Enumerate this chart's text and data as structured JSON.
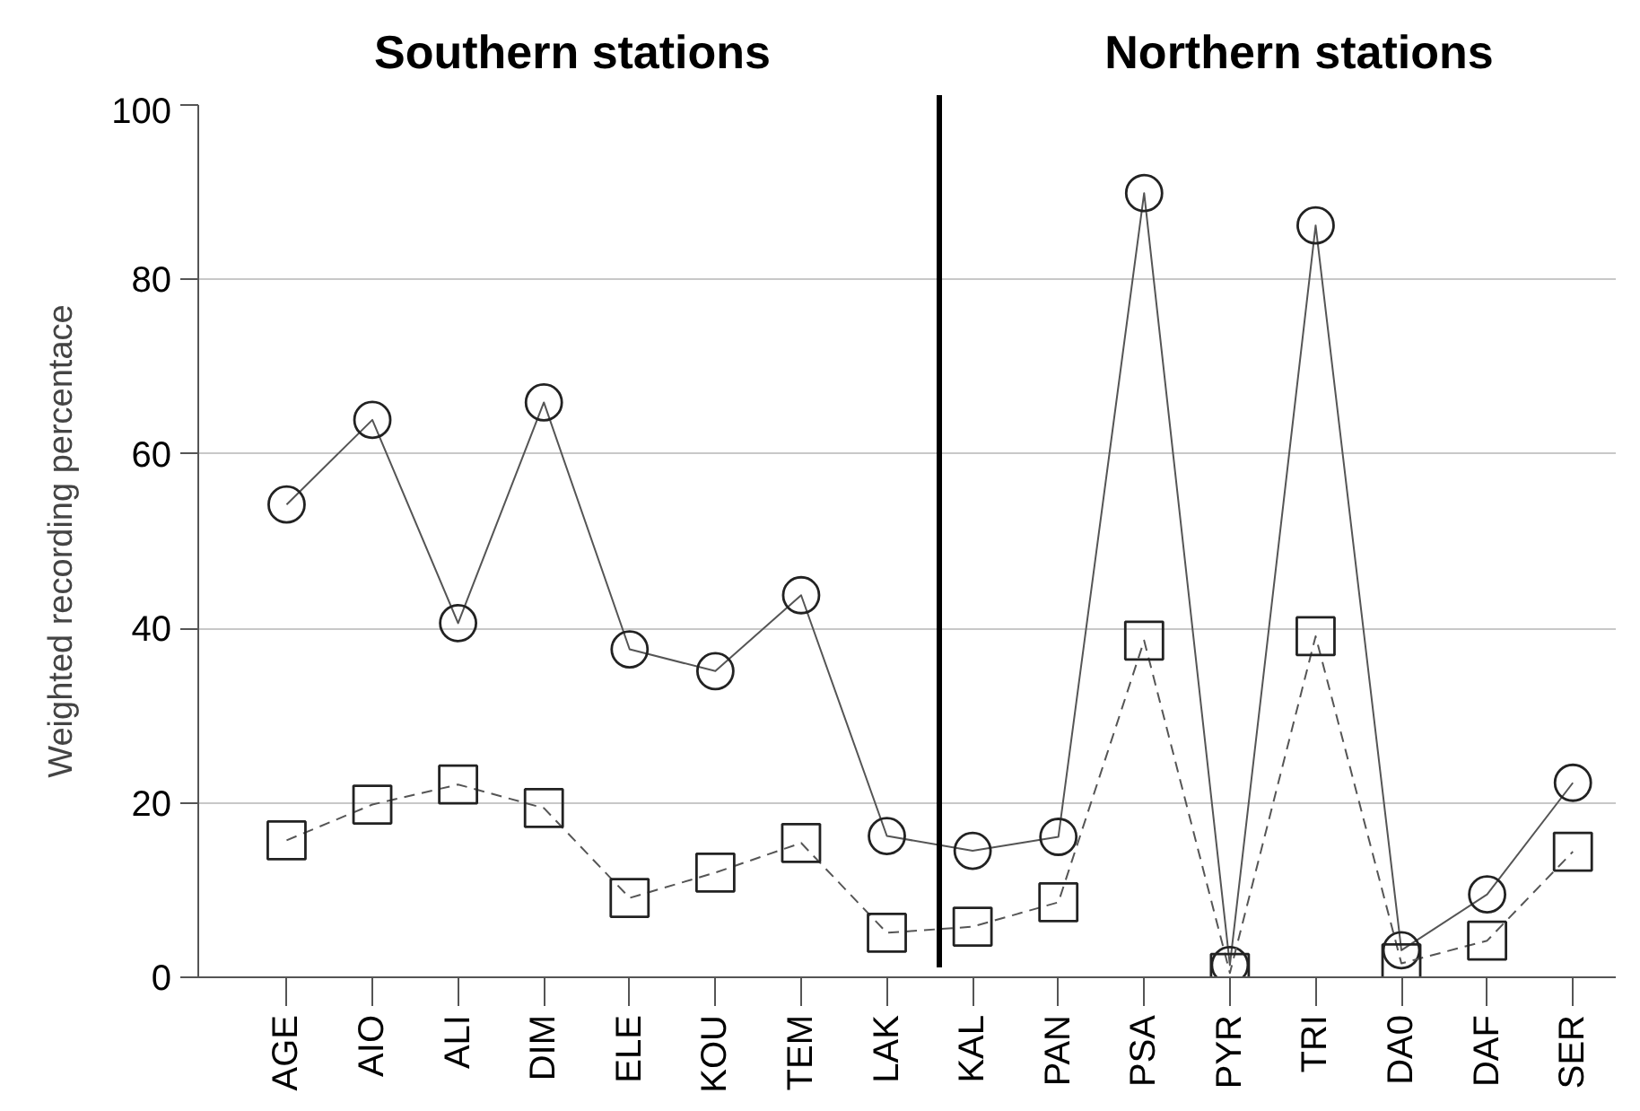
{
  "chart_data": {
    "type": "line",
    "ylabel": "Weighted recording percentace",
    "categories": [
      "AGE",
      "AIO",
      "ALI",
      "DIM",
      "ELE",
      "KOU",
      "TEM",
      "LAK",
      "KAL",
      "PAN",
      "PSA",
      "PYR",
      "TRI",
      "DA0",
      "DAF",
      "SER"
    ],
    "series": [
      {
        "color": "#555555",
        "marker": "circle",
        "line_style": "solid",
        "values": [
          54.2,
          63.9,
          40.6,
          65.9,
          37.6,
          35.1,
          43.8,
          16.2,
          14.5,
          16.1,
          89.9,
          1.4,
          86.2,
          3.1,
          9.5,
          22.3
        ]
      },
      {
        "color": "#555555",
        "marker": "square",
        "line_style": "dashed",
        "values": [
          15.7,
          19.8,
          22.1,
          19.4,
          9.1,
          12.0,
          15.4,
          5.1,
          5.8,
          8.6,
          38.6,
          0.5,
          39.1,
          1.6,
          4.2,
          14.4
        ]
      }
    ],
    "ylim": [
      0,
      100
    ],
    "yticks": [
      0,
      20,
      40,
      60,
      80,
      100
    ],
    "grid": "y",
    "annotations": [
      "Southern stations",
      "Northern stations"
    ]
  }
}
